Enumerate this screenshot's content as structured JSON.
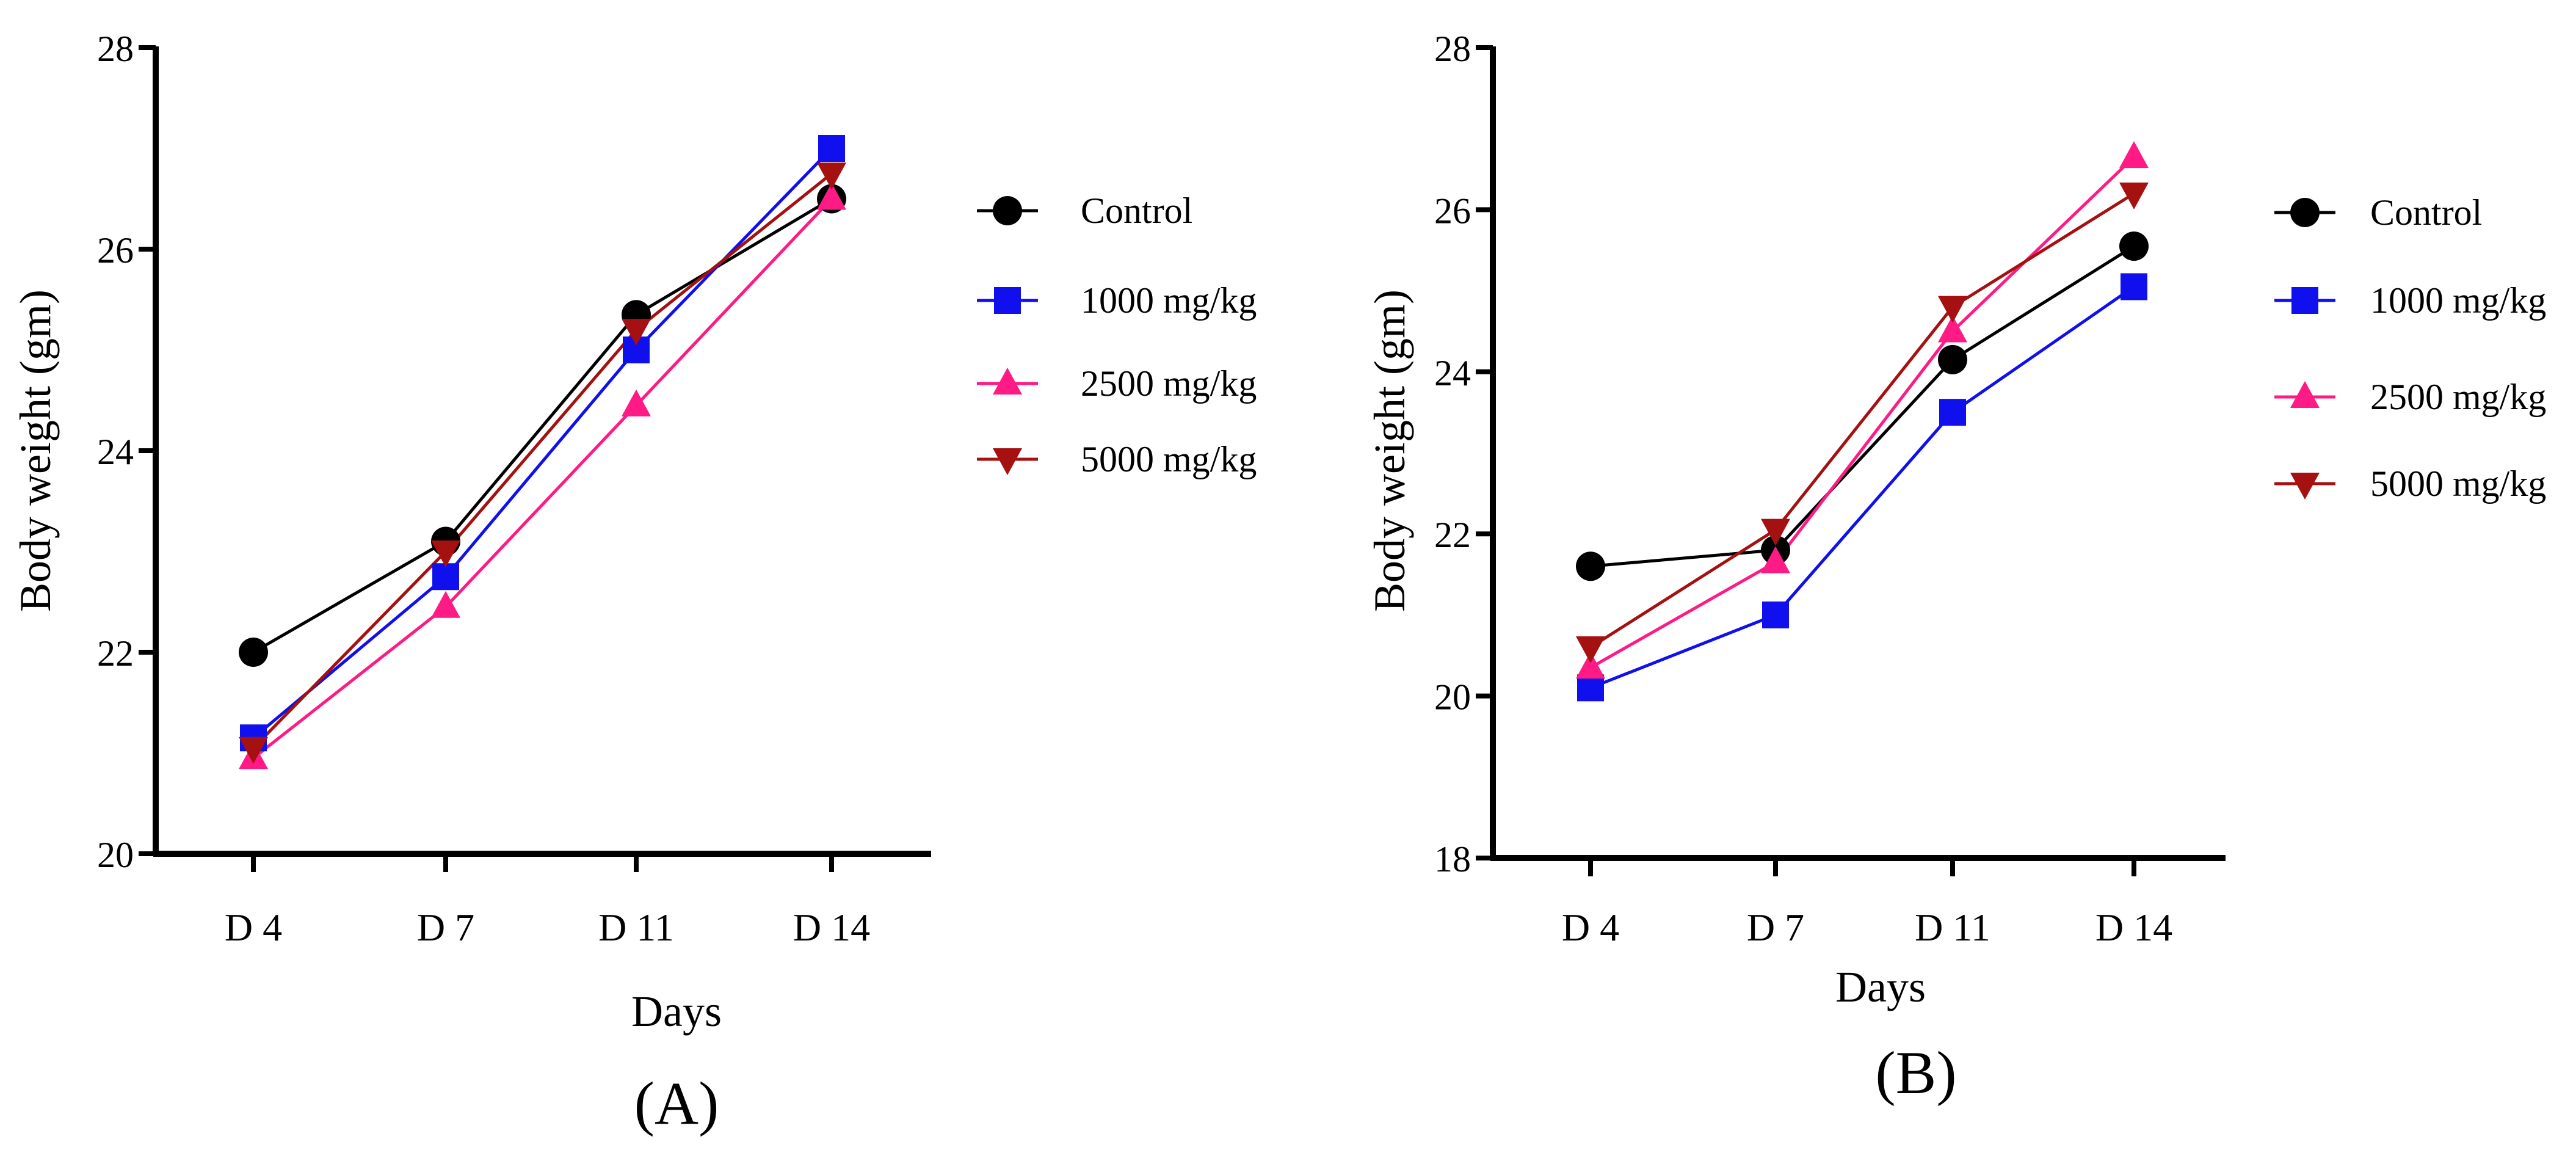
{
  "chart_data": [
    {
      "type": "line",
      "panel_label": "(A)",
      "categories": [
        "D 4",
        "D 7",
        "D 11",
        "D 14"
      ],
      "xlabel": "Days",
      "ylabel": "Body weight (gm)",
      "ylim": [
        20,
        28
      ],
      "yticks": [
        20,
        22,
        24,
        26,
        28
      ],
      "grid": false,
      "legend_position": "right",
      "series": [
        {
          "name": "Control",
          "marker": "circle",
          "color": "#000000",
          "values": [
            22.0,
            23.1,
            25.35,
            26.5
          ]
        },
        {
          "name": "1000 mg/kg",
          "marker": "square",
          "color": "#1010ee",
          "values": [
            21.15,
            22.75,
            25.0,
            27.0
          ]
        },
        {
          "name": "2500 mg/kg",
          "marker": "triangle-up",
          "color": "#ff1a85",
          "values": [
            20.95,
            22.45,
            24.45,
            26.5
          ]
        },
        {
          "name": "5000 mg/kg",
          "marker": "triangle-down",
          "color": "#a51010",
          "values": [
            21.05,
            23.0,
            25.2,
            26.75
          ]
        }
      ]
    },
    {
      "type": "line",
      "panel_label": "(B)",
      "categories": [
        "D 4",
        "D 7",
        "D 11",
        "D 14"
      ],
      "xlabel": "Days",
      "ylabel": "Body weight (gm)",
      "ylim": [
        18,
        28
      ],
      "yticks": [
        18,
        20,
        22,
        24,
        26,
        28
      ],
      "grid": false,
      "legend_position": "right",
      "series": [
        {
          "name": "Control",
          "marker": "circle",
          "color": "#000000",
          "values": [
            21.6,
            21.8,
            24.15,
            25.55
          ]
        },
        {
          "name": "1000 mg/kg",
          "marker": "square",
          "color": "#1010ee",
          "values": [
            20.1,
            21.0,
            23.5,
            25.05
          ]
        },
        {
          "name": "2500 mg/kg",
          "marker": "triangle-up",
          "color": "#ff1a85",
          "values": [
            20.35,
            21.65,
            24.5,
            26.65
          ]
        },
        {
          "name": "5000 mg/kg",
          "marker": "triangle-down",
          "color": "#a51010",
          "values": [
            20.6,
            22.05,
            24.8,
            26.2
          ]
        }
      ]
    }
  ]
}
